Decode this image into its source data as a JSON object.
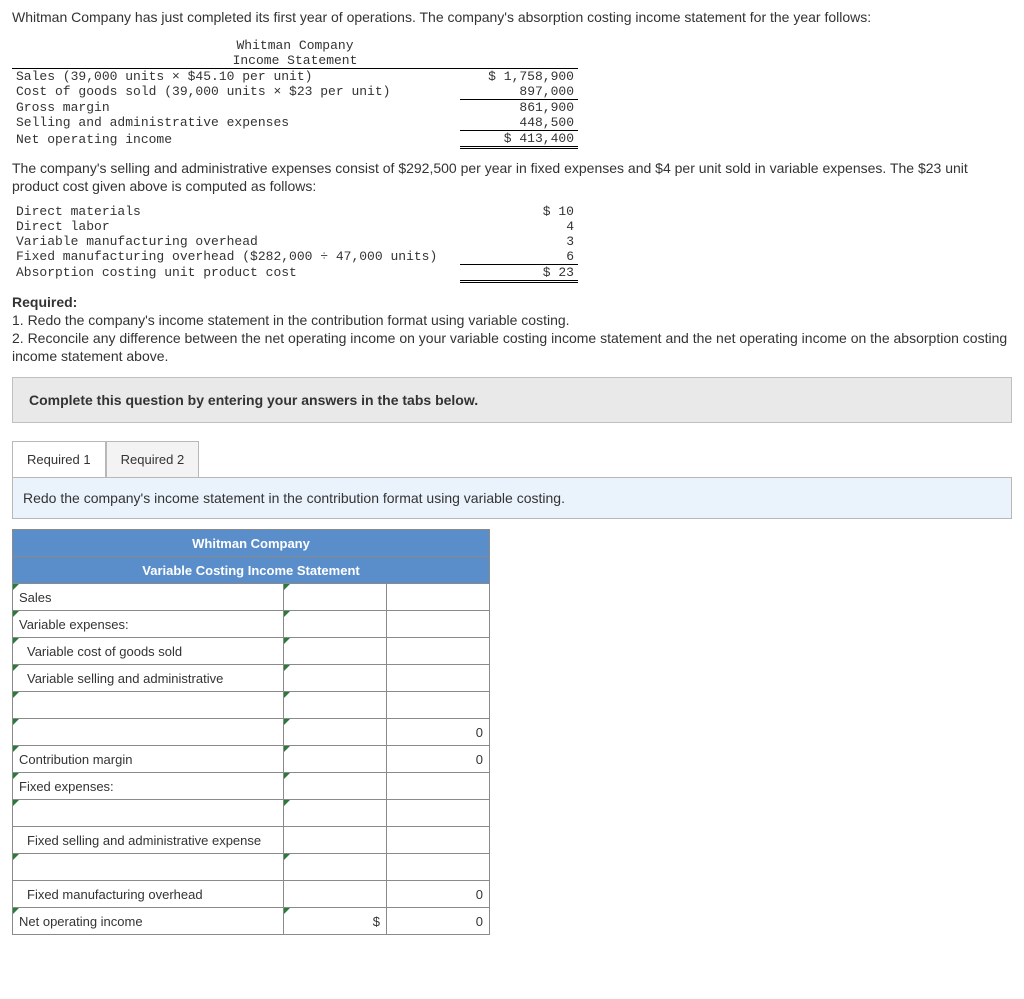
{
  "intro_text": "Whitman Company has just completed its first year of operations. The company's absorption costing income statement for the year follows:",
  "income_statement": {
    "header1": "Whitman Company",
    "header2": "Income Statement",
    "rows": [
      {
        "label": "Sales (39,000 units × $45.10 per unit)",
        "value": "$ 1,758,900"
      },
      {
        "label": "Cost of goods sold (39,000 units × $23 per unit)",
        "value": "897,000"
      },
      {
        "label": "Gross margin",
        "value": "861,900"
      },
      {
        "label": "Selling and administrative expenses",
        "value": "448,500"
      },
      {
        "label": "Net operating income",
        "value": "$ 413,400"
      }
    ]
  },
  "middle_para": "The company's selling and administrative expenses consist of $292,500 per year in fixed expenses and $4 per unit sold in variable expenses. The $23 unit product cost given above is computed as follows:",
  "unit_cost": {
    "rows": [
      {
        "label": "Direct materials",
        "value": "$ 10"
      },
      {
        "label": "Direct labor",
        "value": "4"
      },
      {
        "label": "Variable manufacturing overhead",
        "value": "3"
      },
      {
        "label": "Fixed manufacturing overhead ($282,000 ÷ 47,000 units)",
        "value": "6"
      },
      {
        "label": "Absorption costing unit product cost",
        "value": "$ 23"
      }
    ]
  },
  "required_heading": "Required:",
  "required_1": "1. Redo the company's income statement in the contribution format using variable costing.",
  "required_2": "2. Reconcile any difference between the net operating income on your variable costing income statement and the net operating income on the absorption costing income statement above.",
  "instruction_bar": "Complete this question by entering your answers in the tabs below.",
  "tabs": {
    "tab1": "Required 1",
    "tab2": "Required 2"
  },
  "tab1_instruction": "Redo the company's income statement in the contribution format using variable costing.",
  "answer_table": {
    "title1": "Whitman Company",
    "title2": "Variable Costing Income Statement",
    "rows": [
      {
        "label": "Sales",
        "v1": "",
        "v2": "",
        "tri": true,
        "indent": 0
      },
      {
        "label": "Variable expenses:",
        "v1": "",
        "v2": "",
        "tri": true,
        "indent": 0
      },
      {
        "label": "Variable cost of goods sold",
        "v1": "",
        "v2": "",
        "tri": true,
        "indent": 1
      },
      {
        "label": "Variable selling and administrative",
        "v1": "",
        "v2": "",
        "tri": true,
        "indent": 1
      },
      {
        "label": "",
        "v1": "",
        "v2": "",
        "tri": true,
        "indent": 0
      },
      {
        "label": "",
        "v1": "",
        "v2": "0",
        "tri": true,
        "indent": 0
      },
      {
        "label": "Contribution margin",
        "v1": "",
        "v2": "0",
        "tri": true,
        "indent": 0
      },
      {
        "label": "Fixed expenses:",
        "v1": "",
        "v2": "",
        "tri": true,
        "indent": 0
      },
      {
        "label": "",
        "v1": "",
        "v2": "",
        "tri": true,
        "indent": 0
      },
      {
        "label": "Fixed selling and administrative expense",
        "v1": "",
        "v2": "",
        "tri": false,
        "indent": 1
      },
      {
        "label": "",
        "v1": "",
        "v2": "",
        "tri": true,
        "indent": 0
      },
      {
        "label": "Fixed manufacturing overhead",
        "v1": "",
        "v2": "0",
        "tri": false,
        "indent": 1
      },
      {
        "label": "Net operating income",
        "v1": "$",
        "v2": "0",
        "tri": true,
        "indent": 0
      }
    ]
  }
}
